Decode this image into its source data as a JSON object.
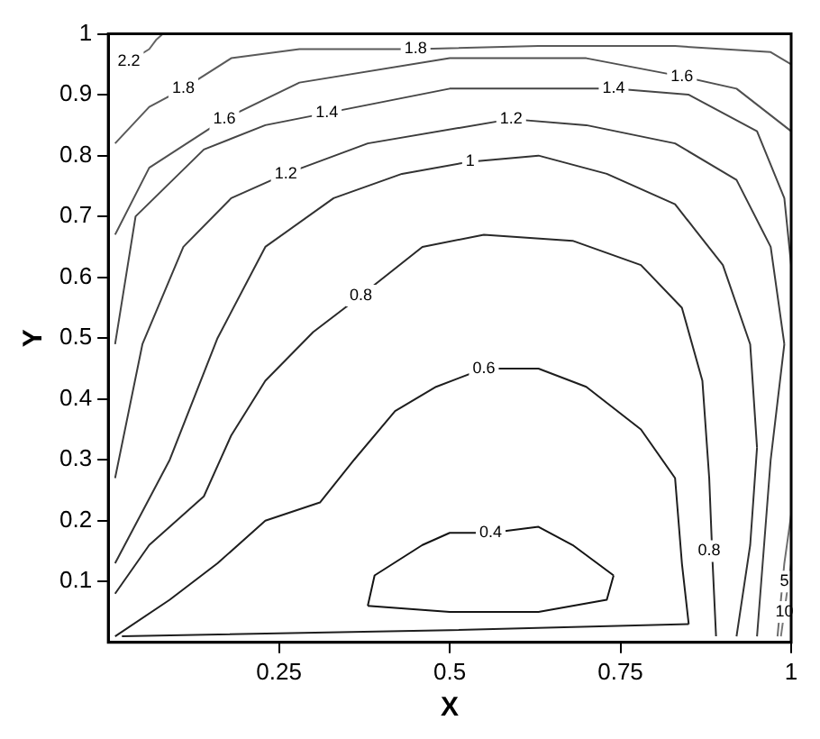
{
  "chart_data": {
    "type": "line",
    "xlabel": "X",
    "ylabel": "Y",
    "xlim": [
      0,
      1
    ],
    "ylim": [
      0,
      1
    ],
    "xticks": [
      0.25,
      0.5,
      0.75,
      1
    ],
    "yticks": [
      0.1,
      0.2,
      0.3,
      0.4,
      0.5,
      0.6,
      0.7,
      0.8,
      0.9,
      1
    ],
    "grid": false,
    "legend": false,
    "marker": "none",
    "line_style": "solid",
    "series": [
      {
        "color": "#141414",
        "x": [
          0.38,
          0.39,
          0.46,
          0.5,
          0.56,
          0.63,
          0.68,
          0.74
        ],
        "values": [
          0.06,
          0.11,
          0.16,
          0.18,
          0.18,
          0.19,
          0.16,
          0.11
        ]
      },
      {
        "color": "#141414",
        "x": [
          0.38,
          0.5,
          0.63,
          0.73,
          0.74
        ],
        "values": [
          0.06,
          0.05,
          0.05,
          0.07,
          0.11
        ]
      },
      {
        "color": "#1e1e1e",
        "x": [
          0.01,
          0.09,
          0.16,
          0.23,
          0.31,
          0.36,
          0.42,
          0.48,
          0.55,
          0.63,
          0.7,
          0.78,
          0.83,
          0.84,
          0.85
        ],
        "values": [
          0.01,
          0.07,
          0.13,
          0.2,
          0.23,
          0.3,
          0.38,
          0.42,
          0.45,
          0.45,
          0.42,
          0.35,
          0.27,
          0.13,
          0.03
        ]
      },
      {
        "color": "#1e1e1e",
        "x": [
          0.02,
          0.5,
          0.85
        ],
        "values": [
          0.01,
          0.02,
          0.03
        ]
      },
      {
        "color": "#282828",
        "x": [
          0.01,
          0.06,
          0.14,
          0.18,
          0.23,
          0.3,
          0.37,
          0.46,
          0.55,
          0.68,
          0.78,
          0.84,
          0.87,
          0.88,
          0.885,
          0.89
        ],
        "values": [
          0.08,
          0.16,
          0.24,
          0.34,
          0.43,
          0.51,
          0.57,
          0.65,
          0.67,
          0.66,
          0.62,
          0.55,
          0.43,
          0.27,
          0.13,
          0.01
        ]
      },
      {
        "color": "#323232",
        "x": [
          0.01,
          0.09,
          0.16,
          0.23,
          0.33,
          0.43,
          0.53,
          0.63,
          0.73,
          0.83,
          0.9,
          0.94,
          0.95
        ],
        "values": [
          0.13,
          0.3,
          0.5,
          0.65,
          0.73,
          0.77,
          0.79,
          0.8,
          0.77,
          0.72,
          0.62,
          0.49,
          0.32
        ]
      },
      {
        "color": "#323232",
        "x": [
          0.92,
          0.94,
          0.95
        ],
        "values": [
          0.01,
          0.16,
          0.32
        ]
      },
      {
        "color": "#3c3c3c",
        "x": [
          0.01,
          0.05,
          0.11,
          0.18,
          0.26,
          0.38,
          0.59,
          0.7,
          0.83,
          0.92,
          0.97,
          0.99
        ],
        "values": [
          0.27,
          0.49,
          0.65,
          0.73,
          0.77,
          0.82,
          0.86,
          0.85,
          0.82,
          0.76,
          0.65,
          0.49
        ]
      },
      {
        "color": "#3c3c3c",
        "x": [
          0.95,
          0.97,
          0.99
        ],
        "values": [
          0.01,
          0.3,
          0.49
        ]
      },
      {
        "color": "#464646",
        "x": [
          0.01,
          0.04,
          0.14,
          0.23,
          0.32,
          0.5,
          0.74,
          0.85,
          0.95,
          0.99,
          1
        ],
        "values": [
          0.49,
          0.7,
          0.81,
          0.85,
          0.87,
          0.91,
          0.91,
          0.9,
          0.84,
          0.73,
          0.62
        ]
      },
      {
        "color": "#505050",
        "x": [
          0.01,
          0.06,
          0.17,
          0.28,
          0.5,
          0.7,
          0.84,
          0.92,
          1
        ],
        "values": [
          0.67,
          0.78,
          0.86,
          0.92,
          0.96,
          0.96,
          0.93,
          0.91,
          0.84
        ]
      },
      {
        "color": "#5a5a5a",
        "x": [
          0.01,
          0.06,
          0.11,
          0.18,
          0.28,
          0.45,
          0.63,
          0.83,
          0.97,
          1
        ],
        "values": [
          0.82,
          0.88,
          0.91,
          0.96,
          0.975,
          0.975,
          0.98,
          0.98,
          0.97,
          0.95
        ]
      },
      {
        "color": "#646464",
        "x": [
          0.01,
          0.06,
          0.07,
          0.08
        ],
        "values": [
          0.94,
          0.975,
          0.99,
          1
        ]
      },
      {
        "color": "#6e6e6e",
        "x": [
          0.98,
          0.99,
          1
        ],
        "values": [
          0.01,
          0.13,
          0.21
        ]
      },
      {
        "color": "#787878",
        "x": [
          0.985,
          0.993,
          1
        ],
        "values": [
          0.01,
          0.075,
          0.13
        ]
      }
    ],
    "annotations": [
      {
        "text": "0.4",
        "x": 0.56,
        "y": 0.18
      },
      {
        "text": "0.6",
        "x": 0.55,
        "y": 0.45
      },
      {
        "text": "0.8",
        "x": 0.37,
        "y": 0.57
      },
      {
        "text": "0.8",
        "x": 0.88,
        "y": 0.15
      },
      {
        "text": "1",
        "x": 0.53,
        "y": 0.79
      },
      {
        "text": "1.2",
        "x": 0.26,
        "y": 0.77
      },
      {
        "text": "1.2",
        "x": 0.59,
        "y": 0.86
      },
      {
        "text": "1.4",
        "x": 0.32,
        "y": 0.87
      },
      {
        "text": "1.4",
        "x": 0.74,
        "y": 0.91
      },
      {
        "text": "1.6",
        "x": 0.17,
        "y": 0.86
      },
      {
        "text": "1.6",
        "x": 0.84,
        "y": 0.93
      },
      {
        "text": "1.8",
        "x": 0.11,
        "y": 0.91
      },
      {
        "text": "1.8",
        "x": 0.45,
        "y": 0.975
      },
      {
        "text": "2.2",
        "x": 0.03,
        "y": 0.955
      },
      {
        "text": "5",
        "x": 0.99,
        "y": 0.1
      },
      {
        "text": "10",
        "x": 0.99,
        "y": 0.05
      }
    ]
  }
}
